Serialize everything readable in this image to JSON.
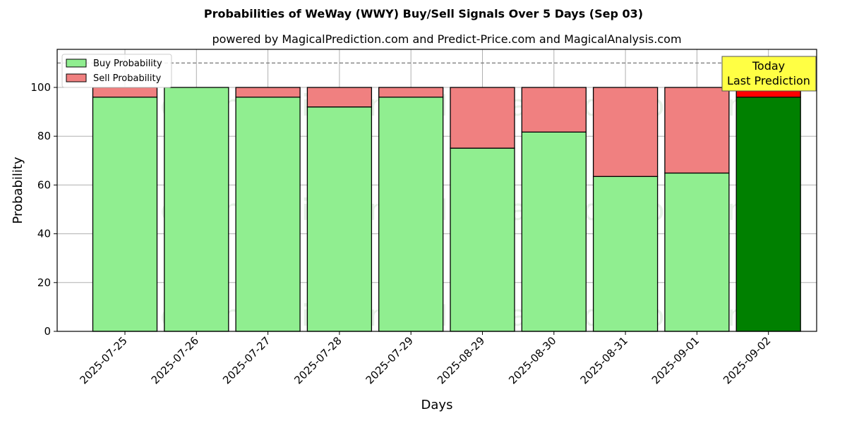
{
  "chart_data": {
    "type": "bar",
    "stacked": true,
    "title": "Probabilities of WeWay (WWY) Buy/Sell Signals Over 5 Days (Sep 03)",
    "subtitle": "powered by MagicalPrediction.com and Predict-Price.com and MagicalAnalysis.com",
    "xlabel": "Days",
    "ylabel": "Probability",
    "ylim": [
      0,
      115
    ],
    "yticks": [
      0,
      20,
      40,
      60,
      80,
      100
    ],
    "grid": true,
    "legend_position": "upper left",
    "reference_line": 110,
    "categories": [
      "2025-07-25",
      "2025-07-26",
      "2025-07-27",
      "2025-07-28",
      "2025-07-29",
      "2025-08-29",
      "2025-08-30",
      "2025-08-31",
      "2025-09-01",
      "2025-09-02"
    ],
    "series": [
      {
        "name": "Buy Probability",
        "color": "#90ee90",
        "values": [
          96,
          100,
          96,
          92,
          96,
          75.1,
          81.7,
          63.5,
          64.9,
          96
        ]
      },
      {
        "name": "Sell Probability",
        "color": "#f08080",
        "values": [
          4,
          0,
          4,
          8,
          4,
          24.9,
          18.3,
          36.5,
          35.1,
          4
        ]
      }
    ],
    "highlight": {
      "index": 9,
      "buy_color": "#008000",
      "sell_color": "#ff0000"
    },
    "annotation": {
      "line1": "Today",
      "line2": "Last Prediction",
      "bg": "#ffff44"
    },
    "watermarks": [
      "MagicalAnalysis.com",
      "MagicalPrediction.com"
    ]
  }
}
